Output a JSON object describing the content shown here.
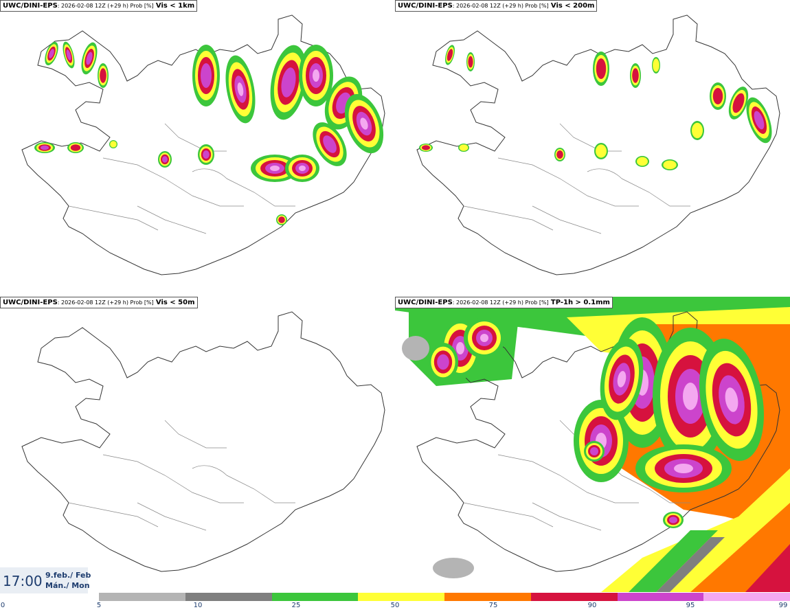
{
  "panels": [
    {
      "model": "UWC/DINI-EPS",
      "meta": ": 2026-02-08 12Z (+29 h) Prob [%]",
      "var": "Vis < 1km"
    },
    {
      "model": "UWC/DINI-EPS",
      "meta": ": 2026-02-08 12Z (+29 h) Prob [%]",
      "var": "Vis < 200m"
    },
    {
      "model": "UWC/DINI-EPS",
      "meta": ": 2026-02-08 12Z (+29 h) Prob [%]",
      "var": "Vis < 50m"
    },
    {
      "model": "UWC/DINI-EPS",
      "meta": ": 2026-02-08 12Z (+29 h) Prob [%]",
      "var": "TP-1h > 0.1mm"
    }
  ],
  "valid_time": {
    "time": "17:00",
    "date_line1": "9.feb./ Feb",
    "date_line2": "Mán./ Mon"
  },
  "colorbar": {
    "colors": [
      "#b4b4b4",
      "#7f7f7f",
      "#3cc63c",
      "#ffff36",
      "#ff7800",
      "#d6123e",
      "#cc44cc",
      "#f4a8f0"
    ],
    "ticks": [
      "0",
      "5",
      "10",
      "25",
      "50",
      "75",
      "90",
      "95",
      "99"
    ]
  }
}
